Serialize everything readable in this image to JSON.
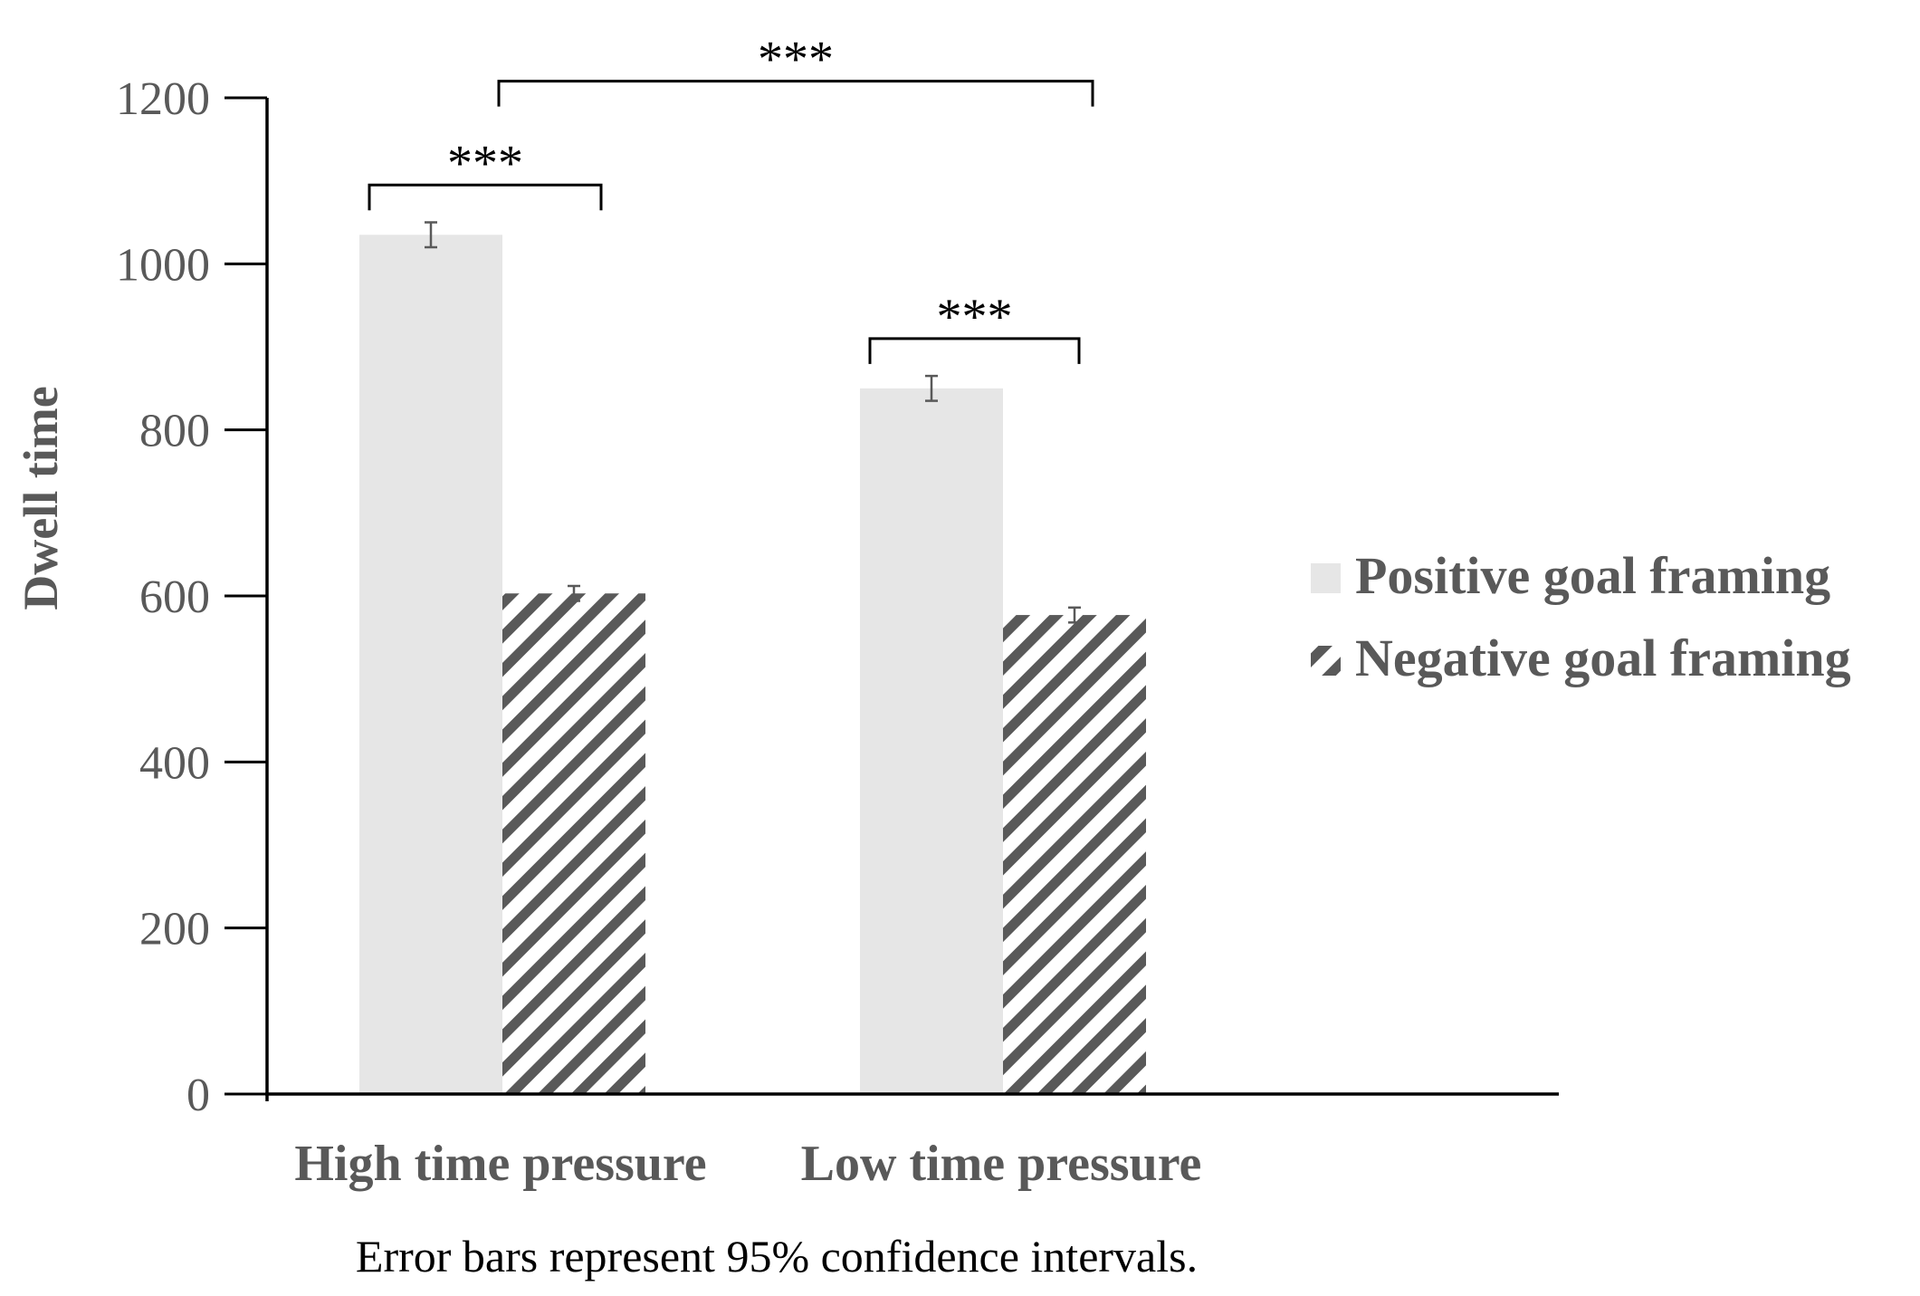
{
  "chart_data": {
    "type": "bar",
    "title": "",
    "xlabel": "",
    "ylabel": "Dwell time",
    "ylim": [
      0,
      1200
    ],
    "yticks": [
      0,
      200,
      400,
      600,
      800,
      1000,
      1200
    ],
    "categories": [
      "High time pressure",
      "Low time pressure"
    ],
    "series": [
      {
        "name": "Positive goal framing",
        "values": [
          1035,
          850
        ],
        "error": [
          15,
          15
        ],
        "pattern": "solid",
        "color": "#e6e6e6"
      },
      {
        "name": "Negative goal framing",
        "values": [
          603,
          577
        ],
        "error": [
          9,
          9
        ],
        "pattern": "hatched",
        "color": "#595959"
      }
    ],
    "significance": [
      {
        "label": "***",
        "from": {
          "category": 0,
          "series": 0
        },
        "to": {
          "category": 0,
          "series": 1
        },
        "level": 1095
      },
      {
        "label": "***",
        "from": {
          "category": 1,
          "series": 0
        },
        "to": {
          "category": 1,
          "series": 1
        },
        "level": 910
      },
      {
        "label": "***",
        "from": {
          "category": 0,
          "series": 1
        },
        "to": {
          "category": 1,
          "series": 1
        },
        "level": 1220
      }
    ],
    "legend_position": "right",
    "note": "Error bars represent 95% confidence intervals."
  }
}
